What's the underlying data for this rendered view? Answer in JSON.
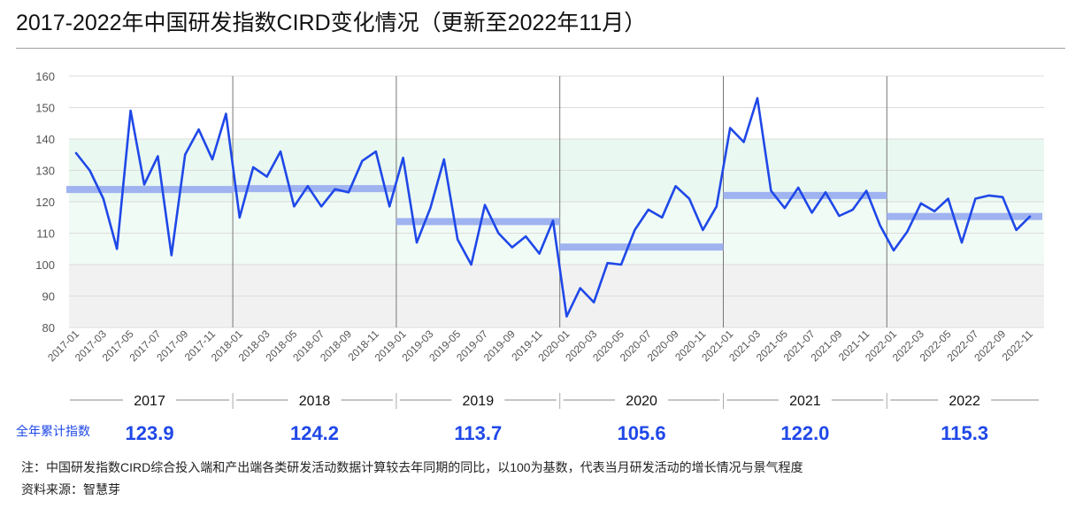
{
  "title": "2017-2022年中国研发指数CIRD变化情况（更新至2022年11月）",
  "cumulative_label": "全年累计指数",
  "footnote": "注：中国研发指数CIRD综合投入端和产出端各类研发活动数据计算较去年同期的同比，以100为基数，代表当月研发活动的增长情况与景气程度",
  "source": "资料来源：智慧芽",
  "colors": {
    "line": "#1f48e8",
    "annual_bar": "#9fb3f0",
    "band_high": "#e9f8f0",
    "band_mid": "#f1fbf6",
    "band_low": "#f1f1f1",
    "accent_text": "#1f48e8"
  },
  "chart_data": {
    "type": "line",
    "ylim": [
      80,
      160
    ],
    "yticks": [
      80,
      90,
      100,
      110,
      120,
      130,
      140,
      150,
      160
    ],
    "x": [
      "2017-01",
      "2017-02",
      "2017-03",
      "2017-04",
      "2017-05",
      "2017-06",
      "2017-07",
      "2017-08",
      "2017-09",
      "2017-10",
      "2017-11",
      "2017-12",
      "2018-01",
      "2018-02",
      "2018-03",
      "2018-04",
      "2018-05",
      "2018-06",
      "2018-07",
      "2018-08",
      "2018-09",
      "2018-10",
      "2018-11",
      "2018-12",
      "2019-01",
      "2019-02",
      "2019-03",
      "2019-04",
      "2019-05",
      "2019-06",
      "2019-07",
      "2019-08",
      "2019-09",
      "2019-10",
      "2019-11",
      "2019-12",
      "2020-01",
      "2020-02",
      "2020-03",
      "2020-04",
      "2020-05",
      "2020-06",
      "2020-07",
      "2020-08",
      "2020-09",
      "2020-10",
      "2020-11",
      "2020-12",
      "2021-01",
      "2021-02",
      "2021-03",
      "2021-04",
      "2021-05",
      "2021-06",
      "2021-07",
      "2021-08",
      "2021-09",
      "2021-10",
      "2021-11",
      "2021-12",
      "2022-01",
      "2022-02",
      "2022-03",
      "2022-04",
      "2022-05",
      "2022-06",
      "2022-07",
      "2022-08",
      "2022-09",
      "2022-10",
      "2022-11"
    ],
    "xticks": [
      "2017-01",
      "2017-03",
      "2017-05",
      "2017-07",
      "2017-09",
      "2017-11",
      "2018-01",
      "2018-03",
      "2018-05",
      "2018-07",
      "2018-09",
      "2018-11",
      "2019-01",
      "2019-03",
      "2019-05",
      "2019-07",
      "2019-09",
      "2019-11",
      "2020-01",
      "2020-03",
      "2020-05",
      "2020-07",
      "2020-09",
      "2020-11",
      "2021-01",
      "2021-03",
      "2021-05",
      "2021-07",
      "2021-09",
      "2021-11",
      "2022-01",
      "2022-03",
      "2022-05",
      "2022-07",
      "2022-09",
      "2022-11"
    ],
    "series": [
      {
        "values": [
          135.5,
          130,
          121,
          105,
          149,
          125.5,
          134.5,
          103,
          135,
          143,
          133.5,
          148,
          115,
          131,
          128,
          136,
          118.5,
          125,
          118.5,
          124,
          123,
          133,
          136,
          118.5,
          134,
          107,
          118,
          133.5,
          108,
          100,
          119,
          110,
          105.5,
          109,
          103.5,
          114,
          83.5,
          92.5,
          88,
          100.5,
          100,
          111,
          117.5,
          115,
          125,
          121,
          111,
          118.5,
          143.5,
          139,
          153,
          123.5,
          118,
          124.5,
          116.5,
          123,
          115.5,
          117.5,
          123.5,
          112.5,
          104.5,
          110.5,
          119.5,
          117,
          121,
          107,
          121,
          122,
          121.5,
          111,
          115.3
        ]
      }
    ],
    "years": [
      {
        "label": "2017",
        "annual": 123.9,
        "annual_text": "123.9"
      },
      {
        "label": "2018",
        "annual": 124.2,
        "annual_text": "124.2"
      },
      {
        "label": "2019",
        "annual": 113.7,
        "annual_text": "113.7"
      },
      {
        "label": "2020",
        "annual": 105.6,
        "annual_text": "105.6"
      },
      {
        "label": "2021",
        "annual": 122.0,
        "annual_text": "122.0"
      },
      {
        "label": "2022",
        "annual": 115.3,
        "annual_text": "115.3"
      }
    ],
    "bands": [
      {
        "from": 120,
        "to": 140,
        "color": "band_high"
      },
      {
        "from": 100,
        "to": 120,
        "color": "band_mid"
      },
      {
        "from": 80,
        "to": 100,
        "color": "band_low"
      }
    ]
  }
}
